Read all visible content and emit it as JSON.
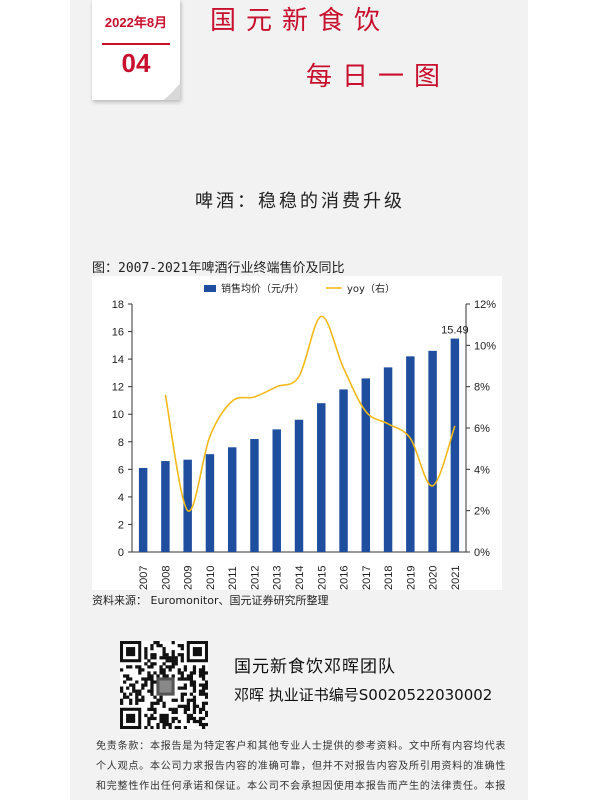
{
  "header": {
    "date_month": "2022年8月",
    "date_day": "04",
    "brand_line1": "国元新食饮",
    "brand_line2": "每日一图",
    "calendar_icon": "calendar-page-icon"
  },
  "headline": "啤酒：稳稳的消费升级",
  "figure_title": "图：2007-2021年啤酒行业终端售价及同比",
  "source": "资料来源： Euromonitor、国元证券研究所整理",
  "footer": {
    "team_name": "国元新食饮邓晖团队",
    "analyst_line": "邓晖  执业证书编号S0020522030002",
    "qr_icon": "qr-code-icon",
    "disclaimer": "免责条款：本报告是为特定客户和其他专业人士提供的参考资料。文中所有内容均代表个人观点。本公司力求报告内容的准确可靠，但并不对报告内容及所引用资料的准确性和完整性作出任何承诺和保证。本公司不会承担因使用本报告而产生的法律责任。本报告版权归国元证券所有，未经授权不得复印、转发或向特定读者群以外的人士传阅。"
  },
  "colors": {
    "bar": "#1f4e9e",
    "line": "#f2b91a",
    "brand_red": "#c8102e"
  },
  "chart_data": {
    "type": "bar",
    "categories": [
      "2007",
      "2008",
      "2009",
      "2010",
      "2011",
      "2012",
      "2013",
      "2014",
      "2015",
      "2016",
      "2017",
      "2018",
      "2019",
      "2020",
      "2021"
    ],
    "series": [
      {
        "name": "销售均价（元/升）",
        "type": "bar",
        "axis": "left",
        "values": [
          6.1,
          6.6,
          6.7,
          7.1,
          7.6,
          8.2,
          8.9,
          9.6,
          10.8,
          11.8,
          12.6,
          13.4,
          14.2,
          14.6,
          15.49
        ]
      },
      {
        "name": "yoy（右）",
        "type": "line",
        "axis": "right",
        "values": [
          null,
          7.6,
          2.0,
          5.6,
          7.3,
          7.5,
          8.0,
          8.5,
          11.4,
          8.9,
          6.8,
          6.2,
          5.5,
          3.2,
          6.1
        ]
      }
    ],
    "data_labels": [
      {
        "category": "2021",
        "text": "15.49"
      }
    ],
    "ylim_left": [
      0,
      18
    ],
    "yticks_left": [
      "0",
      "2",
      "4",
      "6",
      "8",
      "10",
      "12",
      "14",
      "16",
      "18"
    ],
    "ylim_right": [
      0,
      12
    ],
    "yticks_right": [
      "0%",
      "2%",
      "4%",
      "6%",
      "8%",
      "10%",
      "12%"
    ],
    "legend_position": "top-center",
    "grid": false
  }
}
